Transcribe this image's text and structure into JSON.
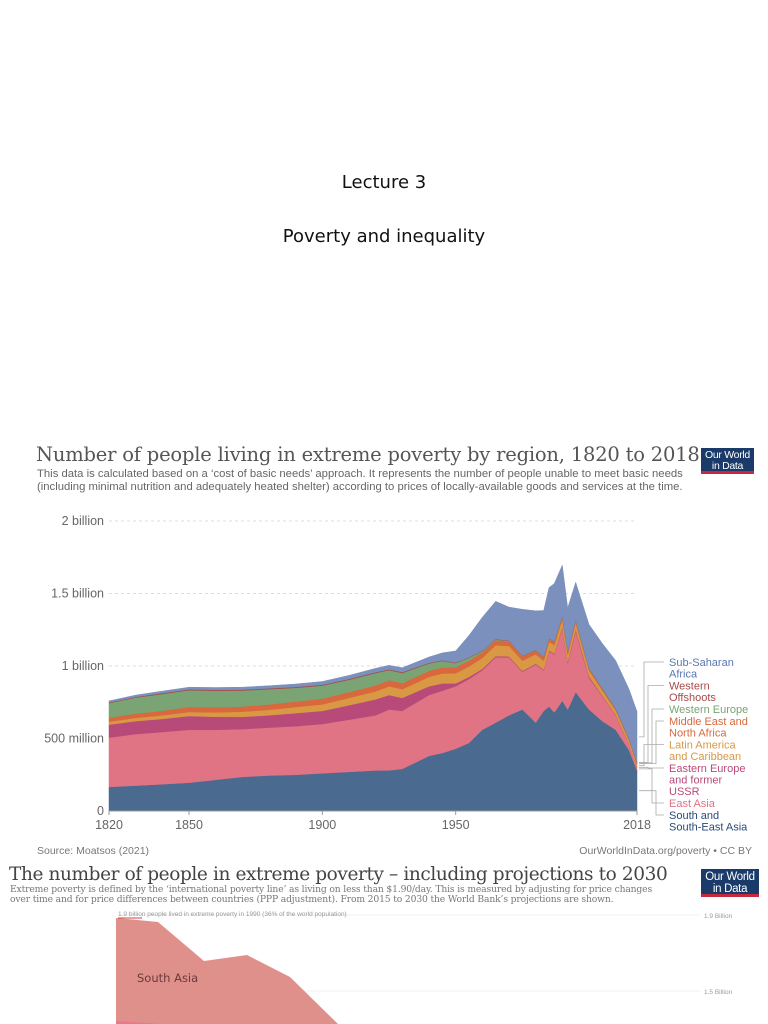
{
  "slide": {
    "lecture_number": "Lecture 3",
    "lecture_title": "Poverty and inequality"
  },
  "chart1": {
    "title": "Number of people living in extreme poverty by region, 1820 to 2018",
    "description": "This data is calculated based on a ‘cost of basic needs’ approach. It represents the number of people unable to meet basic needs (including minimal nutrition and adequately heated shelter) according to prices of locally-available goods and services at the time.",
    "logo": [
      "Our World",
      "in Data"
    ],
    "source": "Source: Moatsos (2021)",
    "credit": "OurWorldInData.org/poverty • CC BY"
  },
  "chart_data": [
    {
      "type": "area",
      "stacked": true,
      "title": "Number of people living in extreme poverty by region, 1820 to 2018",
      "xlabel": "",
      "ylabel": "",
      "xlim": [
        1820,
        2018
      ],
      "ylim": [
        0,
        2000000000
      ],
      "grid": true,
      "x_ticks": [
        1820,
        1850,
        1900,
        1950,
        2018
      ],
      "x_tick_labels": [
        "1820",
        "1850",
        "1900",
        "1950",
        "2018"
      ],
      "y_ticks": [
        0,
        500000000,
        1000000000,
        1500000000,
        2000000000
      ],
      "y_tick_labels": [
        "0",
        "500 million",
        "1 billion",
        "1.5 billion",
        "2 billion"
      ],
      "legend_position": "right",
      "x": [
        1820,
        1830,
        1840,
        1850,
        1860,
        1870,
        1880,
        1890,
        1900,
        1910,
        1920,
        1925,
        1930,
        1940,
        1945,
        1950,
        1955,
        1960,
        1965,
        1970,
        1975,
        1980,
        1983,
        1985,
        1987,
        1990,
        1992,
        1995,
        2000,
        2005,
        2010,
        2015,
        2018
      ],
      "series": [
        {
          "name": "South and South-East Asia",
          "color": "#4a6a90",
          "values": [
            166,
            175,
            185,
            195,
            215,
            235,
            245,
            250,
            260,
            270,
            280,
            280,
            290,
            380,
            400,
            430,
            470,
            560,
            610,
            660,
            700,
            610,
            690,
            720,
            680,
            760,
            700,
            820,
            700,
            620,
            560,
            420,
            280
          ]
        },
        {
          "name": "East Asia",
          "color": "#e07384",
          "values": [
            340,
            355,
            360,
            365,
            345,
            330,
            330,
            335,
            340,
            360,
            380,
            420,
            400,
            420,
            430,
            430,
            440,
            410,
            450,
            400,
            260,
            400,
            280,
            380,
            400,
            500,
            320,
            420,
            220,
            170,
            100,
            40,
            20
          ]
        },
        {
          "name": "Eastern Europe and former USSR",
          "color": "#b84a7a",
          "values": [
            90,
            90,
            90,
            95,
            90,
            85,
            85,
            90,
            90,
            100,
            110,
            100,
            90,
            60,
            50,
            20,
            15,
            10,
            8,
            6,
            6,
            6,
            6,
            6,
            6,
            8,
            10,
            12,
            10,
            6,
            4,
            3,
            3
          ]
        },
        {
          "name": "Latin America and Caribbean",
          "color": "#d99844",
          "values": [
            20,
            22,
            25,
            28,
            30,
            35,
            38,
            42,
            45,
            50,
            55,
            60,
            60,
            65,
            68,
            70,
            72,
            75,
            75,
            72,
            70,
            65,
            60,
            60,
            58,
            55,
            50,
            45,
            40,
            35,
            30,
            25,
            20
          ]
        },
        {
          "name": "Middle East and North Africa",
          "color": "#d9683c",
          "values": [
            28,
            30,
            32,
            35,
            35,
            36,
            37,
            38,
            40,
            40,
            42,
            42,
            42,
            42,
            42,
            40,
            40,
            38,
            35,
            32,
            30,
            25,
            22,
            20,
            20,
            18,
            16,
            15,
            12,
            10,
            8,
            8,
            8
          ]
        },
        {
          "name": "Western Europe",
          "color": "#7aa474",
          "values": [
            100,
            110,
            115,
            115,
            115,
            110,
            105,
            95,
            90,
            85,
            85,
            70,
            70,
            50,
            45,
            30,
            20,
            10,
            5,
            3,
            2,
            2,
            2,
            2,
            2,
            2,
            2,
            2,
            2,
            2,
            2,
            2,
            2
          ]
        },
        {
          "name": "Western Offshoots",
          "color": "#a84a4a",
          "values": [
            5,
            5,
            6,
            6,
            6,
            6,
            6,
            6,
            6,
            6,
            6,
            5,
            6,
            5,
            5,
            4,
            4,
            3,
            3,
            3,
            3,
            3,
            3,
            3,
            3,
            3,
            3,
            3,
            3,
            3,
            3,
            3,
            3
          ]
        },
        {
          "name": "Sub-Saharan Africa",
          "color": "#7b90bc",
          "values": [
            10,
            12,
            14,
            15,
            16,
            17,
            18,
            20,
            22,
            24,
            26,
            28,
            30,
            40,
            50,
            80,
            150,
            230,
            260,
            230,
            320,
            270,
            320,
            350,
            400,
            350,
            300,
            260,
            300,
            310,
            330,
            340,
            350
          ]
        }
      ],
      "units": "millions of people"
    },
    {
      "type": "area",
      "title": "The number of people in extreme poverty – including projections to 2030",
      "subtitle": "Extreme poverty is defined by the ‘international poverty line’ as living on less than $1.90/day. This is measured by adjusting for price changes over time and for price differences between countries (PPP adjustment). From 2015 to 2030 the World Bank’s projections are shown.",
      "annotation": "1.9 billion people lived in extreme poverty in 1990 (36% of the world population)",
      "y_tick_labels": [
        "1.9 Billion",
        "1.5 Billion"
      ],
      "series": [
        {
          "name": "South Asia",
          "color": "#e0908a"
        }
      ]
    }
  ],
  "chart2": {
    "title": "The number of people in extreme poverty – including projections to 2030",
    "description_lines": [
      "Extreme poverty is defined by the ‘international poverty line’ as living on less than $1.90/day. This is measured by adjusting for price changes",
      "over time and for price differences between countries (PPP adjustment). From 2015 to 2030 the World Bank’s projections are shown."
    ],
    "annotation": "1.9 billion people lived in extreme poverty in 1990 (36% of the world population)",
    "region_label": "South Asia",
    "y_labels": [
      "1.9 Billion",
      "1.5 Billion"
    ],
    "logo": [
      "Our World",
      "in Data"
    ]
  }
}
